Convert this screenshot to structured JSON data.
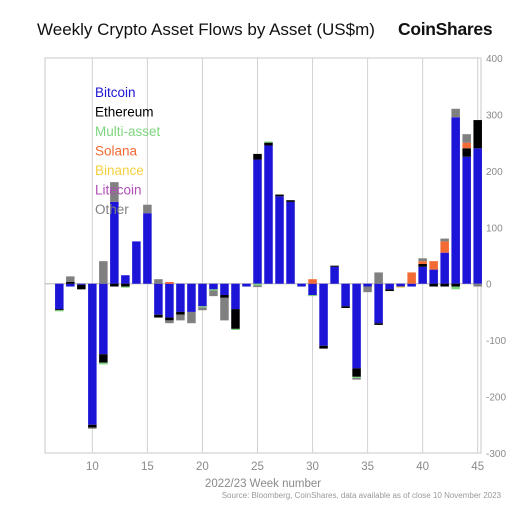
{
  "header": {
    "title": "Weekly Crypto Asset Flows by Asset (US$m)",
    "brand": "CoinShares"
  },
  "footer": {
    "source": "Source: Bloomberg, CoinShares, data available as of close 10 November 2023"
  },
  "chart_data": {
    "type": "bar",
    "stacked": true,
    "xlabel": "2022/23 Week number",
    "ylabel": "",
    "xlim": [
      5.7,
      45.3
    ],
    "ylim": [
      -300,
      400
    ],
    "x_ticks": [
      10,
      15,
      20,
      25,
      30,
      35,
      40,
      45
    ],
    "y_ticks": [
      -300,
      -200,
      -100,
      0,
      100,
      200,
      300,
      400
    ],
    "y_axis_position": "right",
    "grid": true,
    "legend_position": "top-left",
    "weeks": [
      7,
      8,
      9,
      10,
      11,
      12,
      13,
      14,
      15,
      16,
      17,
      18,
      19,
      20,
      21,
      22,
      23,
      24,
      25,
      26,
      27,
      28,
      29,
      30,
      31,
      32,
      33,
      34,
      35,
      36,
      37,
      38,
      39,
      40,
      41,
      42,
      43,
      44,
      45
    ],
    "series": [
      {
        "name": "Bitcoin",
        "color": "#1c14d6",
        "values": [
          -45,
          -5,
          -2,
          -250,
          -125,
          145,
          15,
          75,
          125,
          -55,
          -60,
          -50,
          -50,
          -40,
          -10,
          -20,
          -45,
          -5,
          220,
          245,
          155,
          145,
          -5,
          -20,
          -110,
          30,
          -40,
          -150,
          -5,
          -70,
          -10,
          -5,
          -5,
          30,
          25,
          55,
          295,
          225,
          240
        ]
      },
      {
        "name": "Ethereum",
        "color": "#000000",
        "values": [
          -2,
          3,
          -8,
          -5,
          -15,
          -5,
          -5,
          0,
          0,
          -5,
          -5,
          -5,
          0,
          0,
          0,
          -5,
          -35,
          0,
          10,
          5,
          3,
          3,
          0,
          0,
          -5,
          2,
          -3,
          -15,
          0,
          -3,
          -3,
          0,
          0,
          5,
          -5,
          -5,
          -5,
          15,
          50
        ]
      },
      {
        "name": "Multi-asset",
        "color": "#7fd67f",
        "values": [
          -2,
          0,
          0,
          0,
          -3,
          0,
          -2,
          0,
          0,
          0,
          0,
          0,
          0,
          -2,
          -2,
          0,
          -2,
          0,
          -3,
          2,
          0,
          0,
          0,
          -2,
          0,
          0,
          0,
          -2,
          0,
          0,
          0,
          0,
          0,
          0,
          0,
          0,
          -5,
          0,
          0
        ]
      },
      {
        "name": "Solana",
        "color": "#f26a34",
        "values": [
          0,
          0,
          0,
          0,
          0,
          0,
          0,
          0,
          0,
          0,
          3,
          0,
          0,
          0,
          0,
          0,
          0,
          0,
          0,
          0,
          0,
          0,
          0,
          8,
          0,
          0,
          0,
          0,
          0,
          0,
          0,
          0,
          20,
          5,
          15,
          20,
          0,
          10,
          0
        ]
      },
      {
        "name": "Binance",
        "color": "#f4d03f",
        "values": [
          0,
          0,
          0,
          0,
          0,
          0,
          0,
          0,
          0,
          0,
          0,
          0,
          0,
          0,
          0,
          0,
          0,
          0,
          0,
          0,
          0,
          0,
          0,
          0,
          0,
          0,
          0,
          0,
          0,
          0,
          0,
          -2,
          0,
          0,
          0,
          0,
          0,
          0,
          0
        ]
      },
      {
        "name": "Litecoin",
        "color": "#b04cb8",
        "values": [
          0,
          0,
          0,
          0,
          0,
          0,
          0,
          0,
          0,
          0,
          0,
          0,
          0,
          0,
          0,
          0,
          0,
          0,
          0,
          0,
          0,
          0,
          0,
          0,
          0,
          0,
          0,
          0,
          0,
          0,
          0,
          0,
          0,
          0,
          0,
          0,
          0,
          0,
          0
        ]
      },
      {
        "name": "Other",
        "color": "#808080",
        "values": [
          0,
          10,
          0,
          -2,
          40,
          35,
          0,
          0,
          15,
          8,
          -5,
          -10,
          -20,
          -5,
          -10,
          -40,
          0,
          0,
          -3,
          0,
          0,
          0,
          0,
          0,
          0,
          0,
          0,
          -3,
          -10,
          20,
          0,
          0,
          0,
          5,
          0,
          5,
          15,
          15,
          -5
        ]
      }
    ]
  }
}
